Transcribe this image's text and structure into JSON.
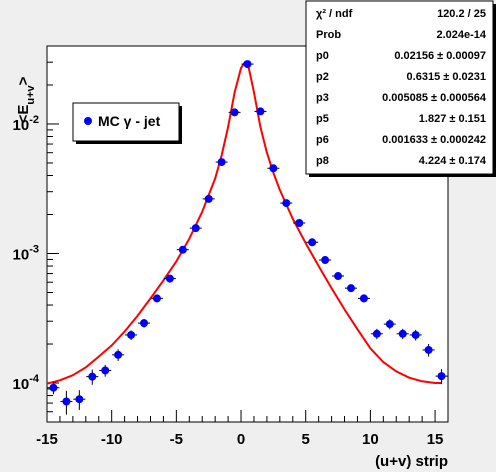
{
  "chart_data": {
    "type": "scatter",
    "x_label": "(u+v) strip",
    "y_label_main": "<E",
    "y_label_sub": "u+v",
    "y_label_end": ">",
    "xlim": [
      -15,
      16
    ],
    "ylim": [
      5e-05,
      0.04
    ],
    "y_scale": "log",
    "x_ticks": [
      -15,
      -10,
      -5,
      0,
      5,
      10,
      15
    ],
    "x_tick_labels": [
      "-15",
      "-10",
      "-5",
      "0",
      "5",
      "10",
      "15"
    ],
    "y_ticks": [
      0.0001,
      0.001,
      0.01
    ],
    "y_tick_labels": [
      {
        "base": "10",
        "exp": "-4"
      },
      {
        "base": "10",
        "exp": "-3"
      },
      {
        "base": "10",
        "exp": "-2"
      }
    ],
    "grid": false,
    "legend": {
      "entries": [
        {
          "label": "MC γ - jet",
          "color": "#0000ff"
        }
      ]
    },
    "series": [
      {
        "name": "MC γ - jet",
        "color": "#0000ff",
        "x": [
          -14.5,
          -13.5,
          -12.5,
          -11.5,
          -10.5,
          -9.5,
          -8.5,
          -7.5,
          -6.5,
          -5.5,
          -4.5,
          -3.5,
          -2.5,
          -1.5,
          -0.5,
          0.5,
          1.5,
          2.5,
          3.5,
          4.5,
          5.5,
          6.5,
          7.5,
          8.5,
          9.5,
          10.5,
          11.5,
          12.5,
          13.5,
          14.5,
          15.5
        ],
        "y": [
          9.2e-05,
          7.2e-05,
          7.5e-05,
          0.000112,
          0.000125,
          0.000165,
          0.000235,
          0.00029,
          0.00045,
          0.00064,
          0.00107,
          0.00157,
          0.00264,
          0.00508,
          0.0123,
          0.029,
          0.0125,
          0.00455,
          0.00245,
          0.00172,
          0.00122,
          0.00089,
          0.00067,
          0.00054,
          0.00045,
          0.00024,
          0.000285,
          0.00024,
          0.000235,
          0.00018,
          0.000113
        ],
        "y_err": [
          1e-05,
          1.5e-05,
          1.3e-05,
          1.5e-05,
          1.3e-05,
          1.7e-05,
          2e-05,
          2.2e-05,
          3e-05,
          4e-05,
          6e-05,
          8e-05,
          0.00012,
          0.0002,
          0.0004,
          0.0008,
          0.0004,
          0.00018,
          0.0001,
          8e-05,
          6e-05,
          5e-05,
          4e-05,
          3.5e-05,
          3e-05,
          2.2e-05,
          2.5e-05,
          2.2e-05,
          2.2e-05,
          2e-05,
          1.5e-05
        ]
      }
    ],
    "fit_curve": {
      "color": "#ff0000",
      "x": [
        -15,
        -14,
        -13,
        -12,
        -11,
        -10,
        -9,
        -8,
        -7,
        -6,
        -5,
        -4,
        -3,
        -2,
        -1.5,
        -1,
        -0.5,
        0,
        0.3,
        0.6,
        1,
        1.5,
        2,
        2.5,
        3,
        4,
        5,
        6,
        7,
        8,
        9,
        10,
        11,
        12,
        13,
        14,
        15,
        15.5
      ],
      "y": [
        9.9e-05,
        0.000105,
        0.000115,
        0.000132,
        0.00016,
        0.000195,
        0.00025,
        0.00033,
        0.00045,
        0.00062,
        0.00087,
        0.0013,
        0.0021,
        0.0038,
        0.0057,
        0.0095,
        0.0175,
        0.027,
        0.03,
        0.027,
        0.0175,
        0.0095,
        0.006,
        0.0042,
        0.0031,
        0.00185,
        0.0012,
        0.0008,
        0.00054,
        0.00037,
        0.00026,
        0.000185,
        0.000145,
        0.000123,
        0.00011,
        0.000103,
        0.0001,
        0.0001
      ]
    },
    "stats_box": {
      "rows": [
        {
          "label": "χ² / ndf",
          "value": "120.2 / 25"
        },
        {
          "label": "Prob",
          "value": "2.024e-14"
        },
        {
          "label": "p0",
          "value": "0.02156 ± 0.00097"
        },
        {
          "label": "p2",
          "value": "0.6315 ± 0.0231"
        },
        {
          "label": "p3",
          "value": "0.005085 ± 0.000564"
        },
        {
          "label": "p5",
          "value": "1.827 ± 0.151"
        },
        {
          "label": "p6",
          "value": "0.001633 ± 0.000242"
        },
        {
          "label": "p8",
          "value": "4.224 ± 0.174"
        }
      ]
    }
  }
}
